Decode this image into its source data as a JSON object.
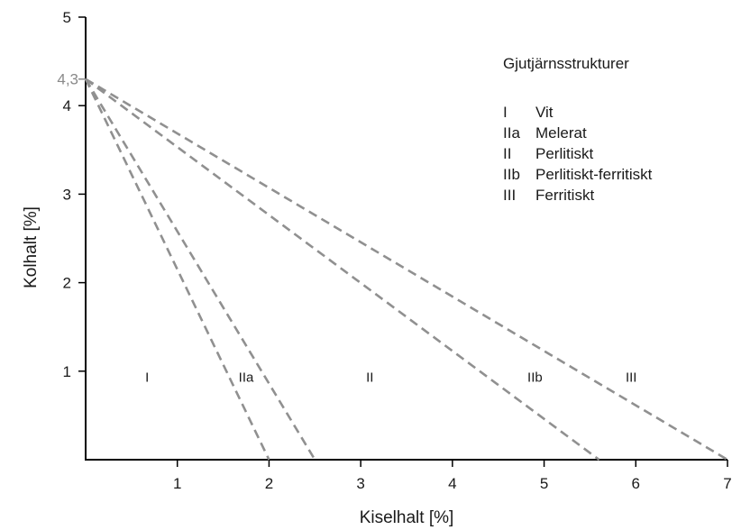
{
  "chart_data": {
    "type": "line",
    "title": "",
    "xlabel": "Kiselhalt  [%]",
    "ylabel": "Kolhalt  [%]",
    "xlim": [
      0,
      7
    ],
    "ylim": [
      0,
      5
    ],
    "xticks": [
      1,
      2,
      3,
      4,
      5,
      6,
      7
    ],
    "yticks": [
      1,
      2,
      3,
      4,
      5
    ],
    "special_tick": {
      "value": 4.3,
      "label": "4,3"
    },
    "grid": false,
    "series": [
      {
        "x": [
          0,
          2.0
        ],
        "y": [
          4.3,
          0
        ],
        "style": "dashed",
        "color": "#909090"
      },
      {
        "x": [
          0,
          2.5
        ],
        "y": [
          4.3,
          0
        ],
        "style": "dashed",
        "color": "#909090"
      },
      {
        "x": [
          0,
          5.6
        ],
        "y": [
          4.3,
          0
        ],
        "style": "dashed",
        "color": "#909090"
      },
      {
        "x": [
          0,
          7.0
        ],
        "y": [
          4.3,
          0
        ],
        "style": "dashed",
        "color": "#909090"
      }
    ],
    "region_labels": [
      {
        "text": "I",
        "x": 0.67,
        "y": 0.93
      },
      {
        "text": "IIa",
        "x": 1.75,
        "y": 0.93
      },
      {
        "text": "II",
        "x": 3.1,
        "y": 0.93
      },
      {
        "text": "IIb",
        "x": 4.9,
        "y": 0.93
      },
      {
        "text": "III",
        "x": 5.95,
        "y": 0.93
      }
    ],
    "legend": {
      "placement": "top-right",
      "title": "Gjutjärnsstrukturer",
      "entries": [
        {
          "code": "I",
          "label": "Vit"
        },
        {
          "code": "IIa",
          "label": "Melerat"
        },
        {
          "code": "II",
          "label": "Perlitiskt"
        },
        {
          "code": "IIb",
          "label": "Perlitiskt-ferritiskt"
        },
        {
          "code": "III",
          "label": "Ferritiskt"
        }
      ]
    }
  }
}
